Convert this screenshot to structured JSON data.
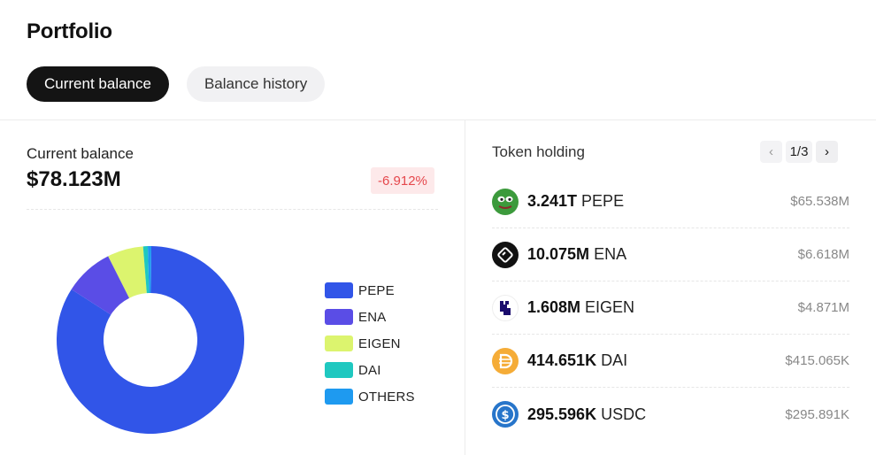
{
  "title": "Portfolio",
  "tabs": [
    {
      "label": "Current balance",
      "active": true
    },
    {
      "label": "Balance history",
      "active": false
    }
  ],
  "balance": {
    "label": "Current balance",
    "value": "$78.123M",
    "change": "-6.912%"
  },
  "allocation": {
    "legend": [
      {
        "label": "PEPE",
        "color": "#3155e8",
        "share": 0.839
      },
      {
        "label": "ENA",
        "color": "#5a4de6",
        "share": 0.085
      },
      {
        "label": "EIGEN",
        "color": "#dcf46e",
        "share": 0.062
      },
      {
        "label": "DAI",
        "color": "#1fc8c0",
        "share": 0.008
      },
      {
        "label": "OTHERS",
        "color": "#1e9af0",
        "share": 0.006
      }
    ]
  },
  "holdings": {
    "title": "Token holding",
    "page": "1/3",
    "items": [
      {
        "amount": "3.241T",
        "symbol": "PEPE",
        "usd": "$65.538M",
        "icon": "pepe-icon",
        "color": "#3c9a3c"
      },
      {
        "amount": "10.075M",
        "symbol": "ENA",
        "usd": "$6.618M",
        "icon": "ena-icon",
        "color": "#111111"
      },
      {
        "amount": "1.608M",
        "symbol": "EIGEN",
        "usd": "$4.871M",
        "icon": "eigen-icon",
        "color": "#1a0c6d"
      },
      {
        "amount": "414.651K",
        "symbol": "DAI",
        "usd": "$415.065K",
        "icon": "dai-icon",
        "color": "#f5ac37"
      },
      {
        "amount": "295.596K",
        "symbol": "USDC",
        "usd": "$295.891K",
        "icon": "usdc-icon",
        "color": "#2775ca"
      }
    ]
  }
}
